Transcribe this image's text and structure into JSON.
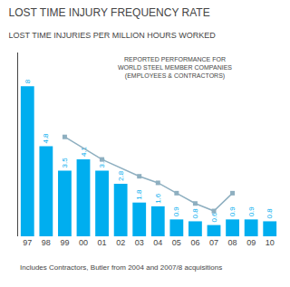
{
  "chart_data": {
    "type": "bar",
    "title": "LOST TIME INJURY FREQUENCY RATE",
    "subtitle": "LOST TIME INJURIES PER MILLION HOURS WORKED",
    "annotations": [
      "REPORTED PERFORMANCE FOR",
      "WORLD STEEL MEMBER COMPANIES",
      "(EMPLOYEES & CONTRACTORS)",
      "Includes Contractors, Butler from 2004 and 2007/8 acquisitions"
    ],
    "categories": [
      "97",
      "98",
      "99",
      "00",
      "01",
      "02",
      "03",
      "04",
      "05",
      "06",
      "07",
      "08",
      "09",
      "10"
    ],
    "series": [
      {
        "type": "bar",
        "color": "#00aeef",
        "values": [
          8.0,
          4.8,
          3.5,
          4.1,
          3.5,
          2.8,
          1.8,
          1.6,
          0.9,
          0.8,
          0.6,
          0.9,
          0.9,
          0.8
        ]
      },
      {
        "type": "line",
        "color": "#8eafc0",
        "marker": "square",
        "x": [
          "99",
          "01",
          "03",
          "04",
          "05",
          "06",
          "07",
          "08"
        ],
        "values": [
          5.3,
          4.1,
          3.2,
          2.85,
          2.3,
          1.75,
          1.35,
          2.3
        ]
      }
    ],
    "ylim": [
      0,
      9.8
    ],
    "data_labels": true,
    "tick_labels": "x",
    "grid": false
  }
}
